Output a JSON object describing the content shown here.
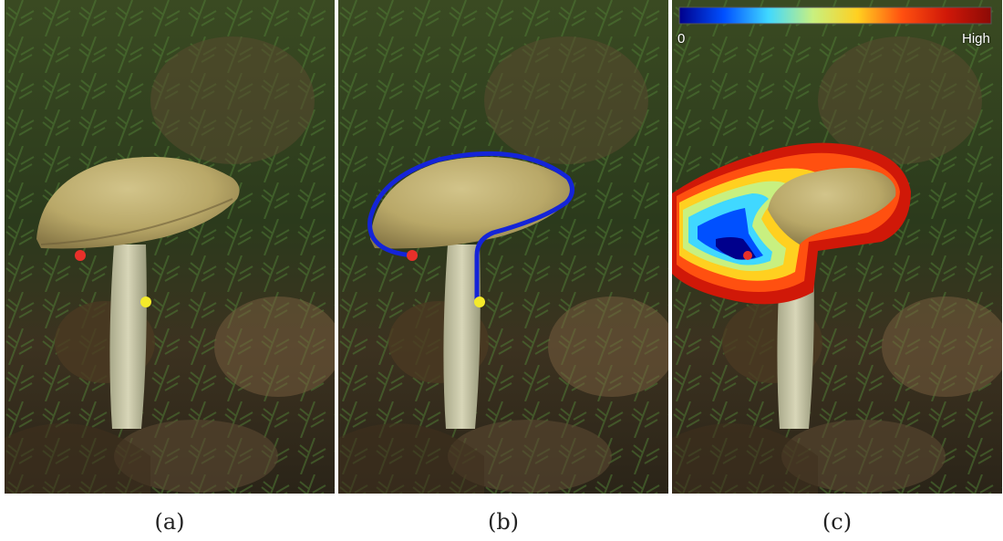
{
  "panels": [
    {
      "caption": "(a)"
    },
    {
      "caption": "(b)"
    },
    {
      "caption": "(c)"
    }
  ],
  "colorbar": {
    "min_label": "0",
    "max_label": "High",
    "colors": [
      "#00008c",
      "#0050ff",
      "#40d8ff",
      "#c8f080",
      "#ffd020",
      "#ff5010",
      "#d01808",
      "#8c0a06"
    ]
  },
  "colors": {
    "start_point": "#e8302a",
    "end_point": "#f4ea2a",
    "contour": "#1424d8"
  }
}
